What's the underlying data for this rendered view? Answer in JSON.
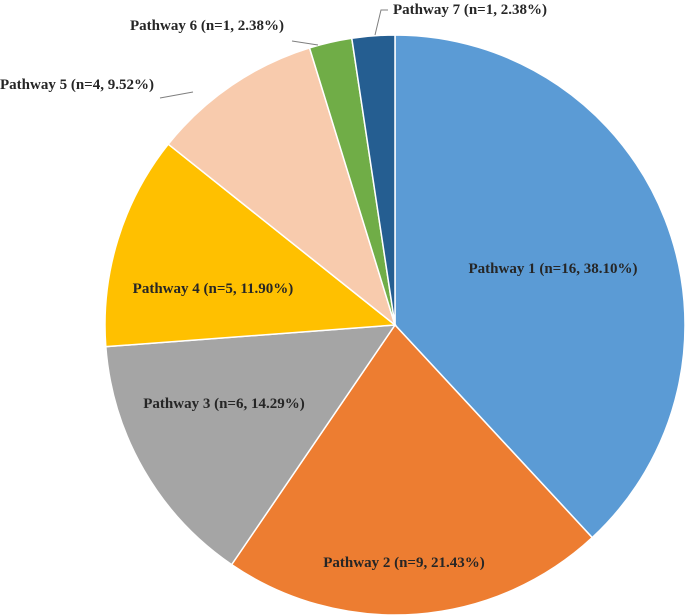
{
  "chart_data": {
    "type": "pie",
    "title": "",
    "legend": "none",
    "slices": [
      {
        "label": "Pathway 1 (n=16, 38.10%)",
        "name": "Pathway 1",
        "n": 16,
        "percent": 38.1,
        "color": "#5b9bd5"
      },
      {
        "label": "Pathway 2 (n=9, 21.43%)",
        "name": "Pathway 2",
        "n": 9,
        "percent": 21.43,
        "color": "#ed7d31"
      },
      {
        "label": "Pathway 3 (n=6, 14.29%)",
        "name": "Pathway 3",
        "n": 6,
        "percent": 14.29,
        "color": "#a5a5a5"
      },
      {
        "label": "Pathway 4 (n=5, 11.90%)",
        "name": "Pathway 4",
        "n": 5,
        "percent": 11.9,
        "color": "#ffc000"
      },
      {
        "label": "Pathway 5 (n=4, 9.52%)",
        "name": "Pathway 5",
        "n": 4,
        "percent": 9.52,
        "color": "#f8cbad"
      },
      {
        "label": "Pathway 6 (n=1, 2.38%)",
        "name": "Pathway 6",
        "n": 1,
        "percent": 2.38,
        "color": "#70ad47"
      },
      {
        "label": "Pathway 7 (n=1, 2.38%)",
        "name": "Pathway 7",
        "n": 1,
        "percent": 2.38,
        "color": "#255e91"
      }
    ]
  }
}
